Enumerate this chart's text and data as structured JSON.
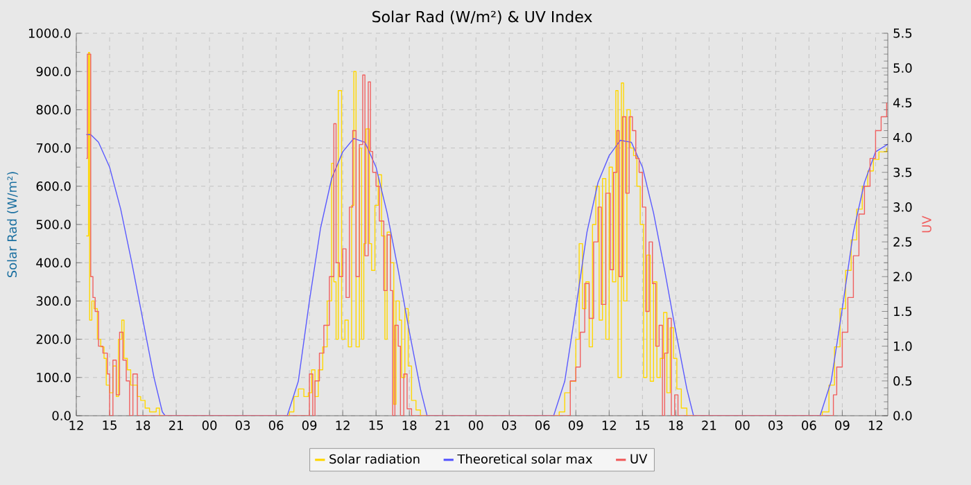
{
  "chart_data": {
    "type": "line",
    "title": "Solar Rad (W/m²) &  UV Index",
    "ylabel": "Solar Rad (W/m²)",
    "y2label": "UV",
    "xlim": [
      12,
      85.1
    ],
    "ylim": [
      0,
      1000
    ],
    "y2lim": [
      0,
      5.5
    ],
    "xticks": [
      {
        "value": 12,
        "label": "12"
      },
      {
        "value": 15,
        "label": "15"
      },
      {
        "value": 18,
        "label": "18"
      },
      {
        "value": 21,
        "label": "21"
      },
      {
        "value": 24,
        "label": "00"
      },
      {
        "value": 27,
        "label": "03"
      },
      {
        "value": 30,
        "label": "06"
      },
      {
        "value": 33,
        "label": "09"
      },
      {
        "value": 36,
        "label": "12"
      },
      {
        "value": 39,
        "label": "15"
      },
      {
        "value": 42,
        "label": "18"
      },
      {
        "value": 45,
        "label": "21"
      },
      {
        "value": 48,
        "label": "00"
      },
      {
        "value": 51,
        "label": "03"
      },
      {
        "value": 54,
        "label": "06"
      },
      {
        "value": 57,
        "label": "09"
      },
      {
        "value": 60,
        "label": "12"
      },
      {
        "value": 63,
        "label": "15"
      },
      {
        "value": 66,
        "label": "18"
      },
      {
        "value": 69,
        "label": "21"
      },
      {
        "value": 72,
        "label": "00"
      },
      {
        "value": 75,
        "label": "03"
      },
      {
        "value": 78,
        "label": "06"
      },
      {
        "value": 81,
        "label": "09"
      },
      {
        "value": 84,
        "label": "12"
      }
    ],
    "yticks": [
      {
        "value": 0,
        "label": "0.0"
      },
      {
        "value": 100,
        "label": "100.0"
      },
      {
        "value": 200,
        "label": "200.0"
      },
      {
        "value": 300,
        "label": "300.0"
      },
      {
        "value": 400,
        "label": "400.0"
      },
      {
        "value": 500,
        "label": "500.0"
      },
      {
        "value": 600,
        "label": "600.0"
      },
      {
        "value": 700,
        "label": "700.0"
      },
      {
        "value": 800,
        "label": "800.0"
      },
      {
        "value": 900,
        "label": "900.0"
      },
      {
        "value": 1000,
        "label": "1000.0"
      }
    ],
    "y2ticks": [
      {
        "value": 0,
        "label": "0.0"
      },
      0.5,
      {
        "value": 1,
        "label": "1.0"
      },
      1.5,
      {
        "value": 2,
        "label": "2.0"
      },
      2.5,
      {
        "value": 3,
        "label": "3.0"
      },
      3.5,
      {
        "value": 4,
        "label": "4.0"
      },
      4.5,
      {
        "value": 5,
        "label": "5.0"
      },
      5.5
    ],
    "grid": true,
    "legend": "bottom",
    "series": [
      {
        "name": "Solar radiation",
        "type": "step",
        "color": "#ffd700",
        "x": [
          12.9,
          13.1,
          13.2,
          13.4,
          13.6,
          13.9,
          14.2,
          14.5,
          14.7,
          15.0,
          15.3,
          15.6,
          15.8,
          16.1,
          16.3,
          16.6,
          16.9,
          17.2,
          17.5,
          17.8,
          18.2,
          18.6,
          19.2,
          19.5,
          31.0,
          31.2,
          31.6,
          32.0,
          32.5,
          32.9,
          33.2,
          33.5,
          33.8,
          34.2,
          34.6,
          35.0,
          35.2,
          35.4,
          35.6,
          35.9,
          36.2,
          36.5,
          36.8,
          37.0,
          37.2,
          37.5,
          37.7,
          37.9,
          38.1,
          38.4,
          38.6,
          38.9,
          39.2,
          39.5,
          39.8,
          40.0,
          40.3,
          40.6,
          40.8,
          41.1,
          41.3,
          41.6,
          41.9,
          42.2,
          42.6,
          43.0,
          55.3,
          55.5,
          56.0,
          56.5,
          57.0,
          57.3,
          57.6,
          57.9,
          58.2,
          58.5,
          58.8,
          59.1,
          59.4,
          59.7,
          60.0,
          60.3,
          60.6,
          60.8,
          61.1,
          61.3,
          61.6,
          61.9,
          62.2,
          62.5,
          62.8,
          63.1,
          63.4,
          63.7,
          64.0,
          64.3,
          64.6,
          64.9,
          65.2,
          65.5,
          65.8,
          66.1,
          66.5,
          67.0,
          79.0,
          79.2,
          79.8,
          80.3,
          80.8,
          81.3,
          81.8,
          82.3,
          82.8,
          83.3,
          83.8,
          84.3,
          85.0
        ],
        "values": [
          470,
          950,
          250,
          300,
          280,
          200,
          180,
          150,
          80,
          60,
          130,
          50,
          200,
          250,
          150,
          120,
          80,
          80,
          50,
          40,
          20,
          10,
          20,
          0,
          0,
          10,
          50,
          70,
          50,
          60,
          120,
          50,
          120,
          180,
          300,
          660,
          350,
          200,
          850,
          200,
          250,
          180,
          550,
          900,
          180,
          700,
          200,
          450,
          750,
          450,
          380,
          550,
          630,
          470,
          200,
          480,
          400,
          30,
          300,
          250,
          100,
          280,
          130,
          40,
          15,
          0,
          0,
          10,
          60,
          90,
          200,
          450,
          280,
          350,
          180,
          500,
          600,
          250,
          620,
          200,
          650,
          350,
          850,
          100,
          870,
          300,
          800,
          700,
          680,
          600,
          500,
          100,
          420,
          90,
          350,
          100,
          150,
          270,
          60,
          230,
          150,
          70,
          20,
          0,
          0,
          10,
          80,
          180,
          280,
          380,
          460,
          540,
          600,
          640,
          670,
          690,
          700
        ]
      },
      {
        "name": "Theoretical solar max",
        "color": "#5a5aff",
        "x": [
          12.9,
          13.3,
          14,
          15,
          16,
          17,
          18,
          19,
          19.75,
          20,
          31,
          32,
          33,
          34,
          35,
          36,
          37,
          38,
          39,
          40,
          41,
          42,
          43,
          43.6,
          55,
          56,
          57,
          58,
          59,
          60,
          61,
          62,
          63,
          64,
          65,
          66,
          67,
          67.6,
          79,
          80,
          81,
          82,
          83,
          84,
          85.1
        ],
        "values": [
          735,
          735,
          715,
          650,
          540,
          400,
          250,
          100,
          10,
          0,
          0,
          90,
          300,
          490,
          620,
          690,
          725,
          715,
          650,
          530,
          380,
          220,
          70,
          0,
          0,
          90,
          280,
          480,
          610,
          680,
          720,
          715,
          650,
          530,
          380,
          220,
          70,
          0,
          0,
          90,
          280,
          480,
          610,
          690,
          710
        ]
      },
      {
        "name": "UV",
        "type": "step",
        "axis": "y2",
        "color": "#f06060",
        "x": [
          12.9,
          13.0,
          13.3,
          13.5,
          13.7,
          14.0,
          14.4,
          14.8,
          15.0,
          15.3,
          15.6,
          15.9,
          16.2,
          16.5,
          16.8,
          17.1,
          17.5,
          33.0,
          33.3,
          33.5,
          33.9,
          34.3,
          34.8,
          35.2,
          35.4,
          35.7,
          36.0,
          36.3,
          36.6,
          36.9,
          37.2,
          37.5,
          37.8,
          38.0,
          38.3,
          38.5,
          38.7,
          39.0,
          39.3,
          39.7,
          40.0,
          40.3,
          40.5,
          40.7,
          41.0,
          41.2,
          41.5,
          41.8,
          42.2,
          56.5,
          57.0,
          57.4,
          57.8,
          58.2,
          58.6,
          59.0,
          59.3,
          59.7,
          60.1,
          60.4,
          60.7,
          60.9,
          61.2,
          61.5,
          61.8,
          62.1,
          62.4,
          62.7,
          63.0,
          63.3,
          63.6,
          63.9,
          64.2,
          64.5,
          64.8,
          65.0,
          65.3,
          65.6,
          65.9,
          66.2,
          80.2,
          80.5,
          81.0,
          81.5,
          82.0,
          82.5,
          83.0,
          83.5,
          84.0,
          84.5,
          85.0
        ],
        "values": [
          3.7,
          5.2,
          2.0,
          1.7,
          1.5,
          1.0,
          0.9,
          0.6,
          0.0,
          0.8,
          0.3,
          1.2,
          0.8,
          0.5,
          0.0,
          0.6,
          0.0,
          0.6,
          0.0,
          0.5,
          0.9,
          1.3,
          2.0,
          4.2,
          2.2,
          2.0,
          2.4,
          1.7,
          3.0,
          4.1,
          2.0,
          3.9,
          4.9,
          2.3,
          4.8,
          3.8,
          3.5,
          3.3,
          2.8,
          1.8,
          2.6,
          1.8,
          0.0,
          1.3,
          1.0,
          0.0,
          0.6,
          0.1,
          0.0,
          0.5,
          0.7,
          1.2,
          1.9,
          1.4,
          2.5,
          3.0,
          1.6,
          3.2,
          2.1,
          3.5,
          4.1,
          2.0,
          4.3,
          3.2,
          4.3,
          4.1,
          3.7,
          3.5,
          3.0,
          1.5,
          2.5,
          1.9,
          1.0,
          1.3,
          0.0,
          0.9,
          1.4,
          0.0,
          0.3,
          0.0,
          0.3,
          0.7,
          1.2,
          1.7,
          2.3,
          2.9,
          3.3,
          3.7,
          4.1,
          4.3,
          4.5
        ]
      }
    ]
  }
}
